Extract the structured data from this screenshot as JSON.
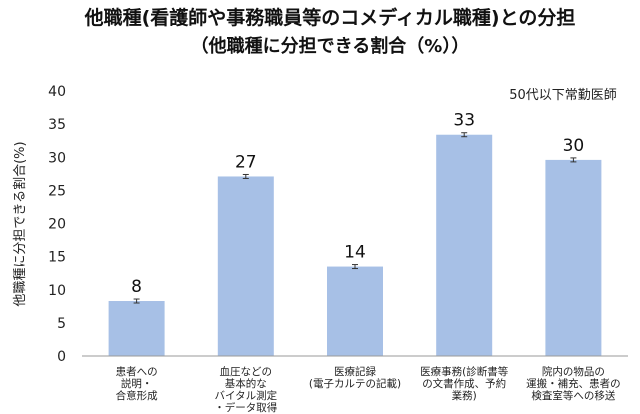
{
  "chart_data": {
    "type": "bar",
    "title_lines": [
      "他職種(看護師や事務職員等のコメディカル職種)との分担",
      "（他職種に分担できる割合（%））"
    ],
    "ylabel": "他職種に分担できる割合(%)",
    "annotation": "50代以下常勤医師",
    "ylim": [
      0,
      40
    ],
    "yticks": [
      0,
      5,
      10,
      15,
      20,
      25,
      30,
      35,
      40
    ],
    "categories": [
      [
        "患者への",
        "説明・",
        "合意形成"
      ],
      [
        "血圧などの",
        "基本的な",
        "バイタル測定",
        "・データ取得"
      ],
      [
        "医療記録",
        "(電子カルテの記載)"
      ],
      [
        "医療事務(診断書等",
        "の文書作成、予約",
        "業務)"
      ],
      [
        "院内の物品の",
        "運搬・補充、患者の",
        "検査室等への移送"
      ]
    ],
    "values": [
      8.3,
      27.1,
      13.5,
      33.4,
      29.6
    ],
    "value_labels": [
      "8",
      "27",
      "14",
      "33",
      "30"
    ],
    "error": [
      0.3,
      0.3,
      0.3,
      0.3,
      0.3
    ],
    "colors": {
      "bar": "#a7c0e6"
    }
  }
}
